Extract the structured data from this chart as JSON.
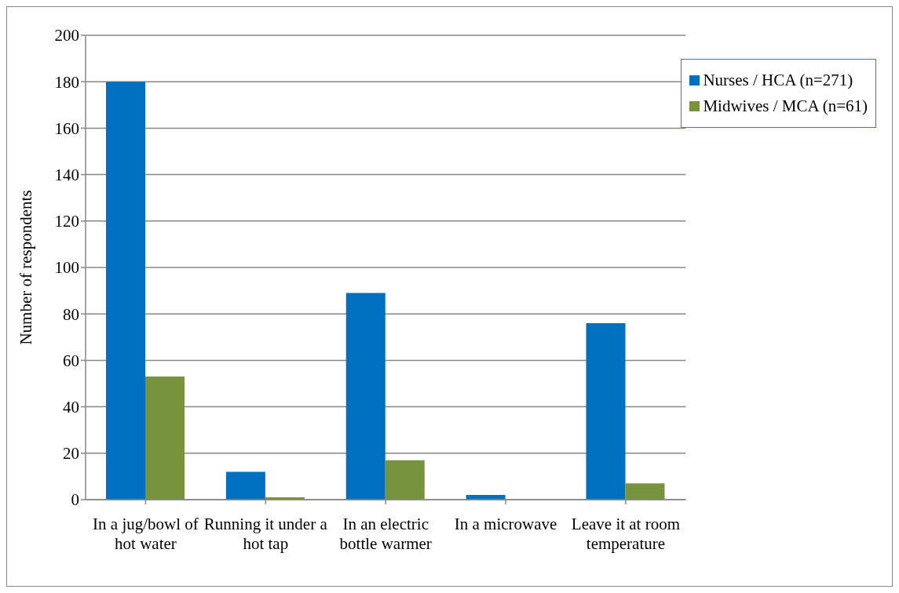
{
  "chart_data": {
    "type": "bar",
    "ylabel": "Number of respondents",
    "categories": [
      "In a jug/bowl of hot water",
      "Running it under a hot tap",
      "In an electric bottle warmer",
      "In a microwave",
      "Leave it at room temperature"
    ],
    "series": [
      {
        "name": "Nurses / HCA (n=271)",
        "color": "#0070c0",
        "values": [
          180,
          12,
          89,
          2,
          76
        ]
      },
      {
        "name": "Midwives / MCA (n=61)",
        "color": "#77933c",
        "values": [
          53,
          1,
          17,
          0,
          7
        ]
      }
    ],
    "ylim": [
      0,
      200
    ],
    "yticks": [
      0,
      20,
      40,
      60,
      80,
      100,
      120,
      140,
      160,
      180,
      200
    ],
    "grid": "y",
    "legend": "top right"
  }
}
